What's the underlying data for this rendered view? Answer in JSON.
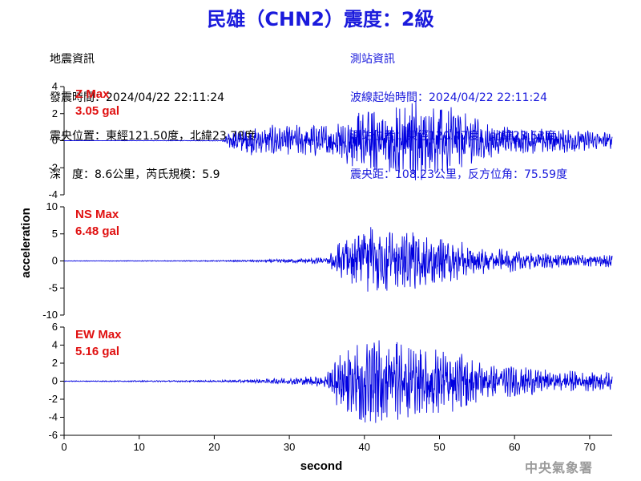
{
  "header": {
    "title": "民雄（CHN2）震度：2級"
  },
  "quake_info": {
    "heading": "地震資訊",
    "origin_time": "發震時間：2024/04/22 22:11:24",
    "epicenter": "震央位置：東經121.50度，北緯23.78度",
    "depth_magnitude": "深　度：8.6公里，芮氏規模：5.9"
  },
  "station_info": {
    "heading": "測站資訊",
    "wave_start": "波線起始時間：2024/04/22 22:11:24",
    "station_location": "測站位置：東經120.47度，北緯23.53度",
    "distance_azimuth": "震央距：108.23公里，反方位角：75.59度"
  },
  "logo_text": "中央氣象署",
  "chart_data": {
    "type": "line",
    "xlabel": "second",
    "ylabel": "acceleration",
    "xlim": [
      0,
      73
    ],
    "xticks": [
      0,
      10,
      20,
      30,
      40,
      50,
      60,
      70
    ],
    "color": "#0000e0",
    "panels": [
      {
        "channel": "Z Max",
        "max_value": "3.05 gal",
        "ylim": [
          -4,
          4
        ],
        "yticks": [
          -4,
          -2,
          0,
          2,
          4
        ],
        "samples": [
          [
            0,
            0
          ],
          [
            21,
            0.03
          ],
          [
            21.5,
            0.3
          ],
          [
            22,
            0.6
          ],
          [
            23,
            0.8
          ],
          [
            24,
            1.0
          ],
          [
            25,
            1.2
          ],
          [
            26,
            1.0
          ],
          [
            27,
            1.1
          ],
          [
            28,
            1.2
          ],
          [
            29,
            1.0
          ],
          [
            30,
            1.3
          ],
          [
            31,
            1.2
          ],
          [
            32,
            1.1
          ],
          [
            33,
            1.3
          ],
          [
            34,
            1.2
          ],
          [
            35,
            1.3
          ],
          [
            36,
            1.5
          ],
          [
            37,
            1.6
          ],
          [
            38,
            1.8
          ],
          [
            39,
            2.0
          ],
          [
            40,
            2.2
          ],
          [
            41,
            2.0
          ],
          [
            42,
            2.4
          ],
          [
            43,
            2.2
          ],
          [
            44,
            2.5
          ],
          [
            45,
            2.3
          ],
          [
            46,
            2.6
          ],
          [
            47,
            3.05
          ],
          [
            48,
            2.8
          ],
          [
            49,
            2.4
          ],
          [
            50,
            2.3
          ],
          [
            51,
            2.2
          ],
          [
            52,
            3.0
          ],
          [
            53,
            2.3
          ],
          [
            54,
            1.9
          ],
          [
            55,
            1.7
          ],
          [
            56,
            1.5
          ],
          [
            57,
            1.3
          ],
          [
            58,
            1.2
          ],
          [
            60,
            1.1
          ],
          [
            62,
            1.0
          ],
          [
            65,
            1.0
          ],
          [
            68,
            0.9
          ],
          [
            70,
            0.8
          ],
          [
            73,
            0.7
          ]
        ]
      },
      {
        "channel": "NS Max",
        "max_value": "6.48 gal",
        "ylim": [
          -10,
          10
        ],
        "yticks": [
          -10,
          -5,
          0,
          5,
          10
        ],
        "samples": [
          [
            0,
            0.05
          ],
          [
            20,
            0.1
          ],
          [
            25,
            0.2
          ],
          [
            28,
            0.3
          ],
          [
            30,
            0.4
          ],
          [
            33,
            0.6
          ],
          [
            35,
            0.8
          ],
          [
            35.5,
            1.5
          ],
          [
            36,
            3.0
          ],
          [
            37,
            3.5
          ],
          [
            38,
            4.0
          ],
          [
            39,
            4.5
          ],
          [
            40,
            5.0
          ],
          [
            41,
            6.48
          ],
          [
            42,
            5.0
          ],
          [
            43,
            5.5
          ],
          [
            44,
            5.0
          ],
          [
            45,
            4.5
          ],
          [
            46,
            5.5
          ],
          [
            47,
            5.0
          ],
          [
            48,
            4.5
          ],
          [
            49,
            4.0
          ],
          [
            50,
            4.0
          ],
          [
            51,
            4.0
          ],
          [
            52,
            3.5
          ],
          [
            53,
            3.5
          ],
          [
            54,
            3.0
          ],
          [
            55,
            3.0
          ],
          [
            57,
            2.5
          ],
          [
            60,
            2.0
          ],
          [
            63,
            1.5
          ],
          [
            66,
            1.5
          ],
          [
            70,
            1.2
          ],
          [
            73,
            1.2
          ]
        ]
      },
      {
        "channel": "EW Max",
        "max_value": "5.16 gal",
        "ylim": [
          -6,
          6
        ],
        "yticks": [
          -6,
          -4,
          -2,
          0,
          2,
          4,
          6
        ],
        "samples": [
          [
            0,
            0.05
          ],
          [
            20,
            0.1
          ],
          [
            25,
            0.2
          ],
          [
            28,
            0.3
          ],
          [
            30,
            0.4
          ],
          [
            33,
            0.6
          ],
          [
            35,
            0.9
          ],
          [
            35.5,
            1.8
          ],
          [
            36,
            2.5
          ],
          [
            37,
            3.0
          ],
          [
            38,
            3.5
          ],
          [
            39,
            4.0
          ],
          [
            40,
            4.5
          ],
          [
            41,
            5.16
          ],
          [
            42,
            4.5
          ],
          [
            43,
            4.0
          ],
          [
            44,
            4.5
          ],
          [
            45,
            4.0
          ],
          [
            46,
            4.0
          ],
          [
            47,
            3.5
          ],
          [
            48,
            3.5
          ],
          [
            49,
            3.5
          ],
          [
            50,
            3.5
          ],
          [
            51,
            3.0
          ],
          [
            52,
            3.5
          ],
          [
            53,
            3.0
          ],
          [
            54,
            2.5
          ],
          [
            55,
            2.5
          ],
          [
            57,
            2.0
          ],
          [
            60,
            1.8
          ],
          [
            63,
            1.5
          ],
          [
            66,
            1.3
          ],
          [
            70,
            1.2
          ],
          [
            73,
            1.0
          ]
        ]
      }
    ]
  }
}
